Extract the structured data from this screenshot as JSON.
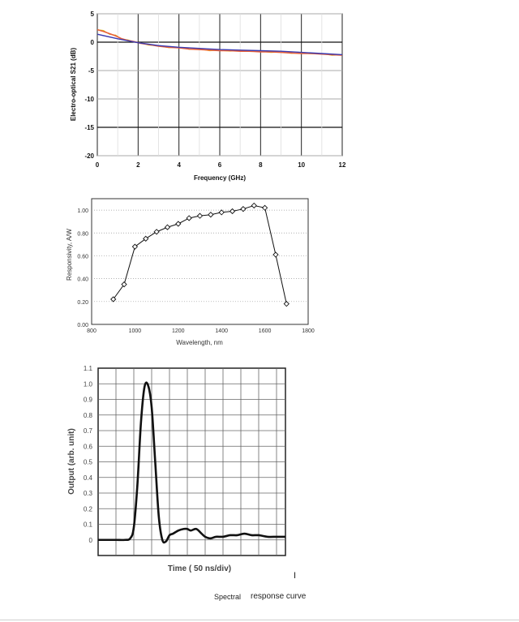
{
  "chart_data": [
    {
      "type": "line",
      "title": "",
      "xlabel": "Frequency (GHz)",
      "ylabel": "Electro-optical S21 (dB)",
      "xlim": [
        0,
        12
      ],
      "ylim": [
        -20,
        5
      ],
      "xticks": [
        0,
        2,
        4,
        6,
        8,
        10,
        12
      ],
      "yticks": [
        5,
        0,
        -5,
        -10,
        -15,
        -20
      ],
      "grid": true,
      "colors": {
        "measured": "#e8603a",
        "trend": "#3a3ab0",
        "measured2": "#d8c020"
      },
      "series": [
        {
          "values_x": [
            0,
            0.3,
            0.6,
            0.9,
            1.2,
            1.5,
            1.8,
            2.1,
            2.5,
            3,
            3.5,
            4,
            4.5,
            5,
            5.5,
            6,
            6.5,
            7,
            7.5,
            8,
            8.5,
            9,
            9.5,
            10,
            10.5,
            11,
            11.5,
            12
          ],
          "values_y": [
            2.2,
            1.9,
            1.5,
            1.1,
            0.6,
            0.3,
            0.1,
            -0.2,
            -0.4,
            -0.7,
            -0.9,
            -1.0,
            -1.2,
            -1.3,
            -1.4,
            -1.5,
            -1.5,
            -1.6,
            -1.6,
            -1.7,
            -1.7,
            -1.8,
            -1.9,
            -2.0,
            -2.0,
            -2.1,
            -2.2,
            -2.3
          ]
        },
        {
          "values_x": [
            0,
            1,
            2,
            3,
            4,
            5,
            6,
            7,
            8,
            9,
            10,
            11,
            12
          ],
          "values_y": [
            1.4,
            0.6,
            -0.1,
            -0.6,
            -0.9,
            -1.1,
            -1.3,
            -1.4,
            -1.5,
            -1.6,
            -1.8,
            -2.0,
            -2.2
          ]
        }
      ]
    },
    {
      "type": "line",
      "title": "",
      "xlabel": "Wavelength, nm",
      "ylabel": "Responsivity, A/W",
      "xlim": [
        800,
        1800
      ],
      "ylim": [
        0,
        1.1
      ],
      "xticks": [
        800,
        1000,
        1200,
        1400,
        1600,
        1800
      ],
      "yticks": [
        "0.00",
        "0.20",
        "0.40",
        "0.60",
        "0.80",
        "1.00"
      ],
      "grid": true,
      "series": [
        {
          "x": [
            900,
            950,
            1000,
            1050,
            1100,
            1150,
            1200,
            1250,
            1300,
            1350,
            1400,
            1450,
            1500,
            1550,
            1600,
            1650,
            1700
          ],
          "y": [
            0.22,
            0.35,
            0.68,
            0.75,
            0.81,
            0.85,
            0.88,
            0.93,
            0.95,
            0.96,
            0.98,
            0.99,
            1.01,
            1.04,
            1.02,
            0.61,
            0.18
          ]
        }
      ]
    },
    {
      "type": "line",
      "title": "",
      "xlabel": "Time ( 50 ns/div)",
      "ylabel": "Output (arb. unit)",
      "xlim": [
        0,
        10.5
      ],
      "ylim": [
        -0.1,
        1.1
      ],
      "yticks": [
        "1.1",
        "1.0",
        "0.9",
        "0.8",
        "0.7",
        "0.6",
        "0.5",
        "0.4",
        "0.3",
        "0.2",
        "0.1",
        "0"
      ],
      "grid": true,
      "series": [
        {
          "x": [
            0,
            0.5,
            1.0,
            1.5,
            1.8,
            2.0,
            2.2,
            2.4,
            2.6,
            2.8,
            3.0,
            3.2,
            3.4,
            3.6,
            3.8,
            4.0,
            4.2,
            4.5,
            4.8,
            5.0,
            5.2,
            5.5,
            5.8,
            6.0,
            6.3,
            6.6,
            7.0,
            7.4,
            7.8,
            8.2,
            8.6,
            9.0,
            9.5,
            10.0,
            10.5
          ],
          "y": [
            0,
            0,
            0,
            0,
            0.01,
            0.08,
            0.35,
            0.75,
            0.98,
            0.99,
            0.85,
            0.5,
            0.15,
            0.0,
            -0.01,
            0.03,
            0.04,
            0.06,
            0.07,
            0.07,
            0.06,
            0.07,
            0.04,
            0.02,
            0.01,
            0.02,
            0.02,
            0.03,
            0.03,
            0.04,
            0.03,
            0.03,
            0.02,
            0.02,
            0.02
          ]
        }
      ]
    }
  ],
  "captions": {
    "part1": "Spectral",
    "part2": "response curve",
    "cursor_mark": "I"
  }
}
